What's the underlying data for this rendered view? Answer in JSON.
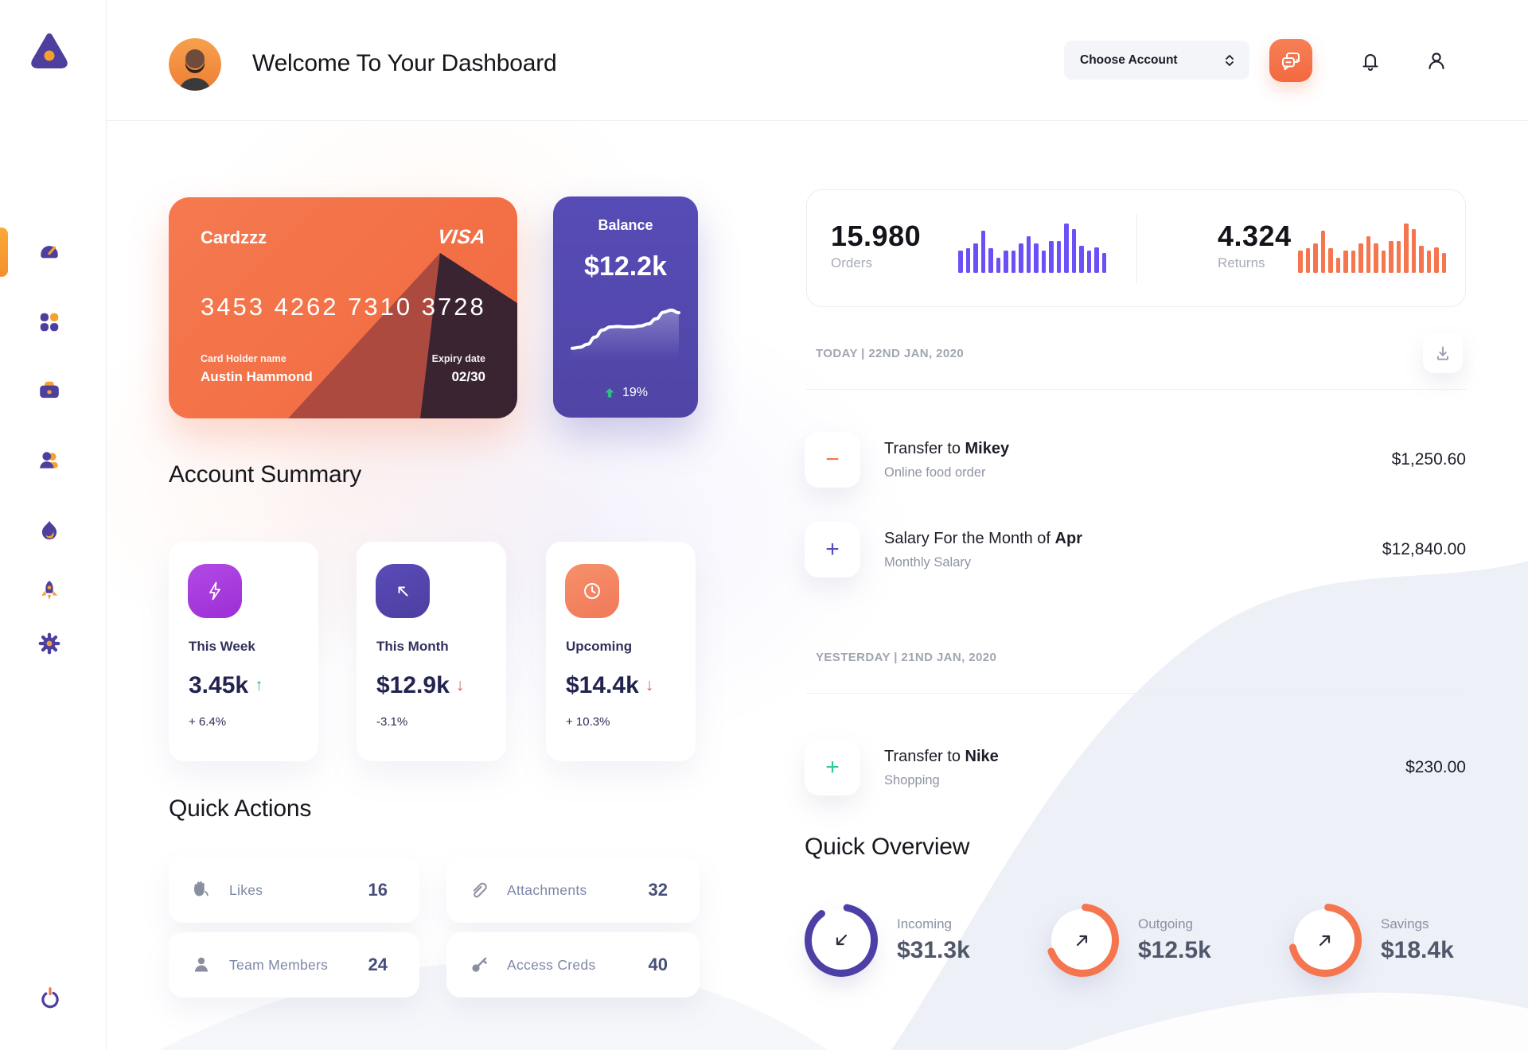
{
  "header": {
    "title": "Welcome To Your Dashboard",
    "account_dropdown": {
      "value": "Choose Account"
    }
  },
  "sidebar": {
    "items": [
      {
        "icon": "speedometer",
        "active": true
      },
      {
        "icon": "apps-grid",
        "active": false
      },
      {
        "icon": "briefcase",
        "active": false
      },
      {
        "icon": "people",
        "active": false
      },
      {
        "icon": "flame",
        "active": false
      },
      {
        "icon": "rocket",
        "active": false
      },
      {
        "icon": "gear",
        "active": false
      }
    ],
    "power_icon": "power"
  },
  "credit_card": {
    "label": "Cardzzz",
    "brand": "VISA",
    "number": "3453 4262 7310 3728",
    "holder_label": "Card Holder name",
    "holder_name": "Austin Hammond",
    "expiry_label": "Expiry date",
    "expiry": "02/30",
    "bg_color": "#F4714A"
  },
  "balance_card": {
    "title": "Balance",
    "amount": "$12.2k",
    "trend_value": "19%",
    "trend_direction": "up",
    "bg_color": "#5449AE",
    "trend_color": "#2EBD85"
  },
  "stats": {
    "orders": {
      "value": "15.980",
      "label": "Orders"
    },
    "returns": {
      "value": "4.324",
      "label": "Returns"
    }
  },
  "chart_data": [
    {
      "type": "bar",
      "title": "Orders",
      "total_label": "15.980",
      "color": "#6C4FF7",
      "values": [
        45,
        50,
        60,
        85,
        50,
        30,
        45,
        45,
        60,
        75,
        60,
        45,
        65,
        65,
        100,
        88,
        55,
        45,
        52,
        40
      ]
    },
    {
      "type": "bar",
      "title": "Returns",
      "total_label": "4.324",
      "color": "#F4754E",
      "values": [
        45,
        50,
        60,
        85,
        50,
        30,
        45,
        45,
        60,
        75,
        60,
        45,
        65,
        65,
        100,
        88,
        55,
        45,
        52,
        40
      ]
    },
    {
      "type": "line",
      "title": "Balance",
      "current_value": "$12.2k",
      "change": "19%",
      "color": "#FFFFFF",
      "points": [
        8,
        10,
        16,
        30,
        44,
        50,
        51,
        50,
        50,
        52,
        56,
        66,
        79,
        83,
        78
      ]
    }
  ],
  "account_summary": {
    "title": "Account Summary",
    "cards": [
      {
        "icon": "lightning-bolt",
        "icon_bg": "#A93BE0",
        "period": "This Week",
        "value": "3.45k",
        "trend": "up",
        "trend_color": "#2EBD85",
        "change": "+ 6.4%"
      },
      {
        "icon": "arrow-up-left",
        "icon_bg": "#5244A9",
        "period": "This Month",
        "value": "$12.9k",
        "trend": "down",
        "trend_color": "#E25C55",
        "change": "-3.1%"
      },
      {
        "icon": "clock",
        "icon_bg": "#F4876A",
        "period": "Upcoming",
        "value": "$14.4k",
        "trend": "down",
        "trend_color": "#E25C55",
        "change": "+ 10.3%"
      }
    ]
  },
  "quick_actions": {
    "title": "Quick Actions",
    "items": [
      {
        "icon": "clap-hand",
        "label": "Likes",
        "count": "16"
      },
      {
        "icon": "paperclip",
        "label": "Attachments",
        "count": "32"
      },
      {
        "icon": "person",
        "label": "Team Members",
        "count": "24"
      },
      {
        "icon": "key",
        "label": "Access Creds",
        "count": "40"
      }
    ]
  },
  "transactions": {
    "groups": [
      {
        "date_label": "TODAY | 22ND JAN, 2020",
        "rows": [
          {
            "sign": "−",
            "sign_color": "#F4754E",
            "title_prefix": "Transfer to ",
            "title_bold": "Mikey",
            "subtitle": "Online food order",
            "amount": "$1,250.60"
          },
          {
            "sign": "+",
            "sign_color": "#554BC2",
            "title_prefix": "Salary For the Month of ",
            "title_bold": "Apr",
            "subtitle": "Monthly Salary",
            "amount": "$12,840.00"
          }
        ]
      },
      {
        "date_label": "YESTERDAY | 21ND JAN, 2020",
        "rows": [
          {
            "sign": "+",
            "sign_color": "#2FC9A0",
            "title_prefix": "Transfer to ",
            "title_bold": "Nike",
            "subtitle": "Shopping",
            "amount": "$230.00"
          }
        ]
      }
    ]
  },
  "quick_overview": {
    "title": "Quick Overview",
    "items": [
      {
        "label": "Incoming",
        "value": "$31.3k",
        "ring_color": "#4C3FA5",
        "percent": 87,
        "rotate": -80,
        "arrow": "down-left"
      },
      {
        "label": "Outgoing",
        "value": "$12.5k",
        "ring_color": "#F4754E",
        "percent": 68,
        "rotate": -85,
        "arrow": "up-right"
      },
      {
        "label": "Savings",
        "value": "$18.4k",
        "ring_color": "#F4754E",
        "percent": 70,
        "rotate": -85,
        "arrow": "up-right"
      }
    ]
  },
  "colors": {
    "accent_orange": "#F4754E",
    "accent_gold": "#F6A12E",
    "purple_deep": "#4C3F9E",
    "purple_bar": "#6C4FF7",
    "green": "#2EBD85",
    "red": "#E25C55",
    "teal": "#2FC9A0"
  }
}
